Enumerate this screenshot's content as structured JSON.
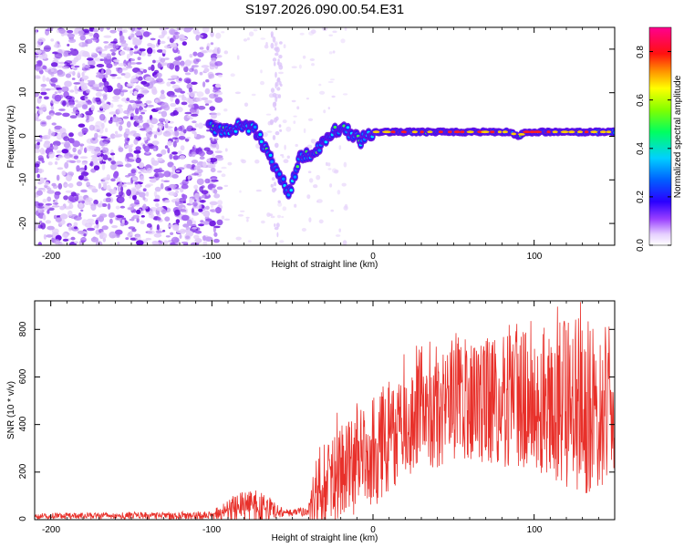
{
  "title": "S197.2026.090.00.54.E31",
  "chart_data": [
    {
      "type": "heatmap",
      "description_panel": "spectrogram",
      "xlabel": "Height of straight line (km)",
      "ylabel": "Frequency (Hz)",
      "xlim": [
        -210,
        150
      ],
      "ylim": [
        -25,
        25
      ],
      "xticks": [
        -200,
        -100,
        0,
        100
      ],
      "yticks": [
        -20,
        -10,
        0,
        10,
        20
      ],
      "xtick_labels": [
        "-200",
        "-100",
        "0",
        "100"
      ],
      "ytick_labels": [
        "-20",
        "-10",
        "0",
        "10",
        "20"
      ],
      "colorbar": {
        "label": "Normalized spectral amplitude",
        "range": [
          0,
          0.9
        ],
        "ticks": [
          0.0,
          0.2,
          0.4,
          0.6,
          0.8
        ],
        "tick_labels": [
          "0.0",
          "0.2",
          "0.4",
          "0.6",
          "0.8"
        ]
      },
      "track": [
        {
          "x": -100,
          "y": 2
        },
        {
          "x": -90,
          "y": 1
        },
        {
          "x": -82,
          "y": 3
        },
        {
          "x": -72,
          "y": 1
        },
        {
          "x": -65,
          "y": -4
        },
        {
          "x": -60,
          "y": -8
        },
        {
          "x": -55,
          "y": -11
        },
        {
          "x": -52,
          "y": -13
        },
        {
          "x": -45,
          "y": -5
        },
        {
          "x": -35,
          "y": -3
        },
        {
          "x": -28,
          "y": 0
        },
        {
          "x": -20,
          "y": 2
        },
        {
          "x": -15,
          "y": 1
        },
        {
          "x": -8,
          "y": -1
        },
        {
          "x": 0,
          "y": 1
        },
        {
          "x": 20,
          "y": 1
        },
        {
          "x": 85,
          "y": 1
        },
        {
          "x": 90,
          "y": 0
        },
        {
          "x": 95,
          "y": 1
        },
        {
          "x": 150,
          "y": 1
        }
      ]
    },
    {
      "type": "line",
      "description_panel": "snr",
      "xlabel": "Height of straight line (km)",
      "ylabel": "SNR (10 * v/v)",
      "xlim": [
        -210,
        150
      ],
      "ylim": [
        0,
        920
      ],
      "xticks": [
        -200,
        -100,
        0,
        100
      ],
      "yticks": [
        0,
        200,
        400,
        600,
        800
      ],
      "xtick_labels": [
        "-200",
        "-100",
        "0",
        "100"
      ],
      "ytick_labels": [
        "0",
        "200",
        "400",
        "600",
        "800"
      ],
      "color": "#e8302a",
      "envelope": [
        {
          "x": -210,
          "base": 15,
          "amp": 12
        },
        {
          "x": -100,
          "base": 18,
          "amp": 18
        },
        {
          "x": -85,
          "base": 50,
          "amp": 60
        },
        {
          "x": -70,
          "base": 60,
          "amp": 70
        },
        {
          "x": -55,
          "base": 28,
          "amp": 15
        },
        {
          "x": -40,
          "base": 35,
          "amp": 20
        },
        {
          "x": -35,
          "base": 120,
          "amp": 180
        },
        {
          "x": -20,
          "base": 200,
          "amp": 200
        },
        {
          "x": 0,
          "base": 280,
          "amp": 230
        },
        {
          "x": 20,
          "base": 400,
          "amp": 220
        },
        {
          "x": 50,
          "base": 480,
          "amp": 240
        },
        {
          "x": 100,
          "base": 500,
          "amp": 300
        },
        {
          "x": 130,
          "base": 480,
          "amp": 380
        },
        {
          "x": 150,
          "base": 430,
          "amp": 280
        }
      ]
    }
  ]
}
